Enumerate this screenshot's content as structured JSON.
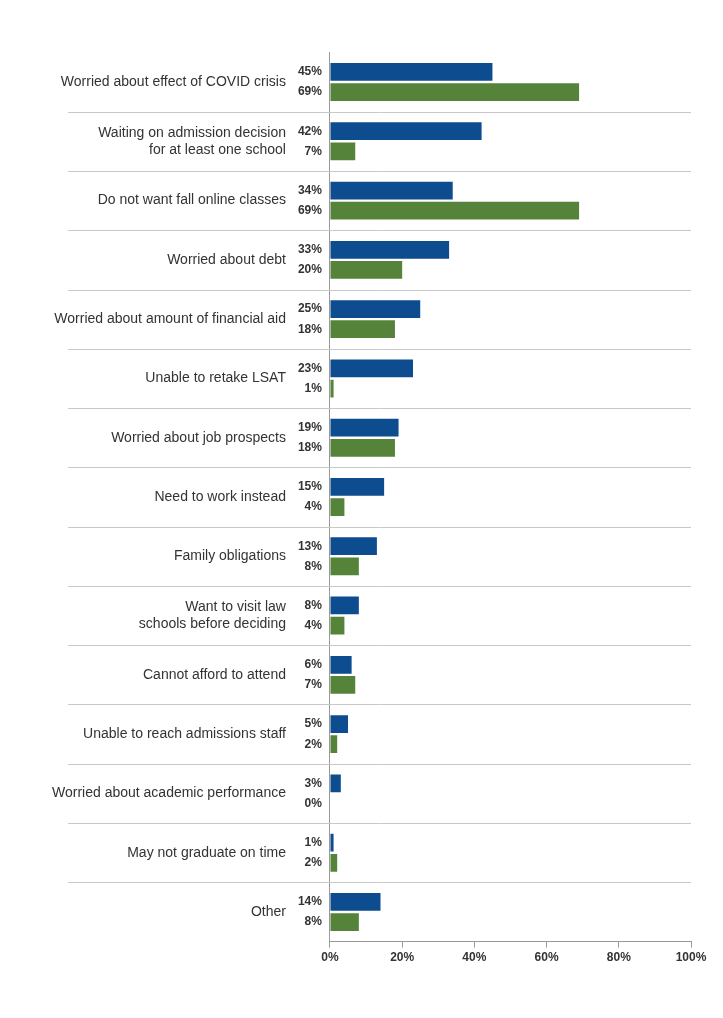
{
  "chart_data": {
    "type": "bar",
    "orientation": "horizontal",
    "categories": [
      "Worried about effect of COVID crisis",
      "Waiting on admission decision for at least one school",
      "Do not want fall online classes",
      "Worried about debt",
      "Worried about amount of financial aid",
      "Unable to retake LSAT",
      "Worried about job prospects",
      "Need to work instead",
      "Family obligations",
      "Want to visit law schools before deciding",
      "Cannot afford to attend",
      "Unable to reach admissions staff",
      "Worried about academic performance",
      "May not graduate on time",
      "Other"
    ],
    "series": [
      {
        "color": "#0d4c8f",
        "values": [
          45,
          42,
          34,
          33,
          25,
          23,
          19,
          15,
          13,
          8,
          6,
          5,
          3,
          1,
          14
        ],
        "value_labels": [
          "45%",
          "42%",
          "34%",
          "33%",
          "25%",
          "23%",
          "19%",
          "15%",
          "13%",
          "8%",
          "6%",
          "5%",
          "3%",
          "1%",
          "14%"
        ]
      },
      {
        "color": "#56833a",
        "values": [
          69,
          7,
          69,
          20,
          18,
          1,
          18,
          4,
          8,
          4,
          7,
          2,
          0,
          2,
          8
        ],
        "value_labels": [
          "69%",
          "7%",
          "69%",
          "20%",
          "18%",
          "1%",
          "18%",
          "4%",
          "8%",
          "4%",
          "7%",
          "2%",
          "0%",
          "2%",
          "8%"
        ]
      }
    ],
    "xlim": [
      0,
      100
    ],
    "xticks": [
      {
        "value": 0,
        "label": "0%"
      },
      {
        "value": 20,
        "label": "20%"
      },
      {
        "value": 40,
        "label": "40%"
      },
      {
        "value": 60,
        "label": "60%"
      },
      {
        "value": 80,
        "label": "80%"
      },
      {
        "value": 100,
        "label": "100%"
      }
    ],
    "grid": true,
    "data_labels": true
  }
}
